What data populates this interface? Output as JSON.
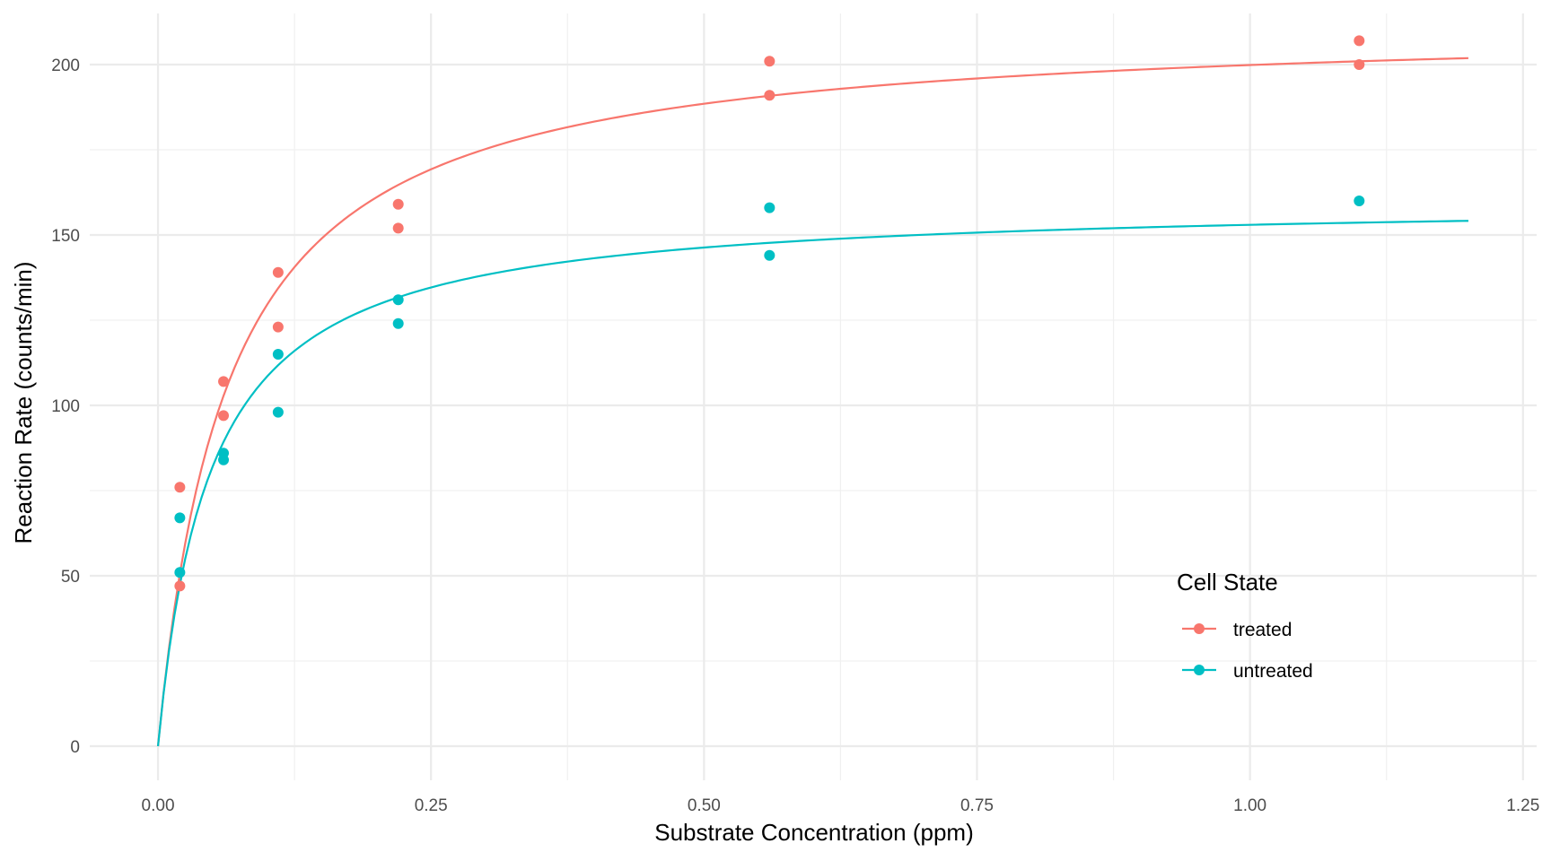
{
  "chart_data": {
    "type": "scatter",
    "xlabel": "Substrate Concentration (ppm)",
    "ylabel": "Reaction Rate (counts/min)",
    "xlim": [
      -0.0625,
      1.2625
    ],
    "ylim": [
      -10,
      215
    ],
    "x_ticks": [
      0,
      0.25,
      0.5,
      0.75,
      1.0,
      1.25
    ],
    "x_tick_labels": [
      "0.00",
      "0.25",
      "0.50",
      "0.75",
      "1.00",
      "1.25"
    ],
    "y_ticks": [
      0,
      50,
      100,
      150,
      200
    ],
    "y_tick_labels": [
      "0",
      "50",
      "100",
      "150",
      "200"
    ],
    "grid": true,
    "legend": {
      "title": "Cell State",
      "position": "bottom-right"
    },
    "series": [
      {
        "name": "treated",
        "color": "#F8766D",
        "points": [
          {
            "x": 0.02,
            "y": 76
          },
          {
            "x": 0.02,
            "y": 47
          },
          {
            "x": 0.06,
            "y": 97
          },
          {
            "x": 0.06,
            "y": 107
          },
          {
            "x": 0.11,
            "y": 123
          },
          {
            "x": 0.11,
            "y": 139
          },
          {
            "x": 0.22,
            "y": 159
          },
          {
            "x": 0.22,
            "y": 152
          },
          {
            "x": 0.56,
            "y": 191
          },
          {
            "x": 0.56,
            "y": 201
          },
          {
            "x": 1.1,
            "y": 207
          },
          {
            "x": 1.1,
            "y": 200
          }
        ],
        "fit": {
          "model": "Michaelis-Menten",
          "Vm": 212.68,
          "K": 0.06412,
          "x_range": [
            0,
            1.2
          ]
        }
      },
      {
        "name": "untreated",
        "color": "#00BFC4",
        "points": [
          {
            "x": 0.02,
            "y": 67
          },
          {
            "x": 0.02,
            "y": 51
          },
          {
            "x": 0.06,
            "y": 84
          },
          {
            "x": 0.06,
            "y": 86
          },
          {
            "x": 0.11,
            "y": 98
          },
          {
            "x": 0.11,
            "y": 115
          },
          {
            "x": 0.22,
            "y": 131
          },
          {
            "x": 0.22,
            "y": 124
          },
          {
            "x": 0.56,
            "y": 144
          },
          {
            "x": 0.56,
            "y": 158
          },
          {
            "x": 1.1,
            "y": 160
          }
        ],
        "fit": {
          "model": "Michaelis-Menten",
          "Vm": 160.28,
          "K": 0.04771,
          "x_range": [
            0,
            1.2
          ]
        }
      }
    ]
  }
}
